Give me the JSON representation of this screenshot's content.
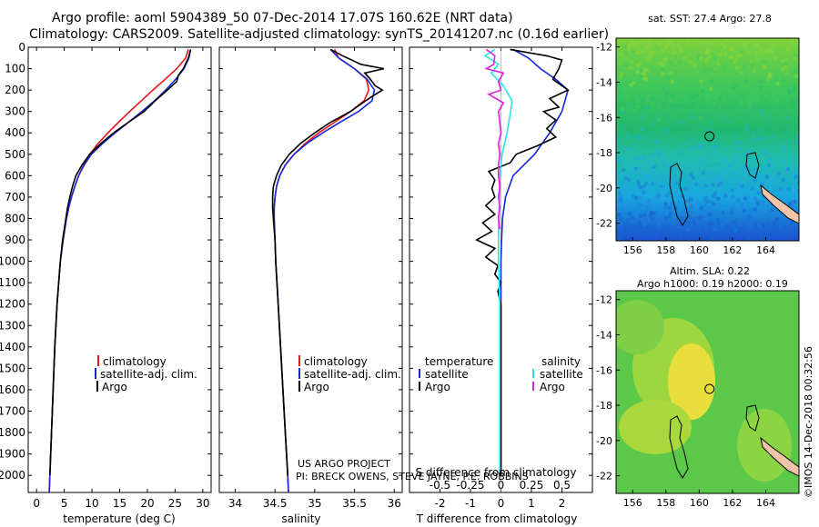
{
  "title_line1": "Argo profile: aoml 5904389_50 07-Dec-2014 17.07S 160.62E (NRT data)",
  "title_line2": "Climatology: CARS2009. Satellite-adjusted climatology: synTS_20141207.nc (0.16d earlier)",
  "colors": {
    "climatology": "#e8141c",
    "satellite": "#1428d8",
    "argo": "#000000",
    "sal_sat": "#28e6e6",
    "sal_argo": "#e020e0",
    "land": "#f0c4a8"
  },
  "chart_data": [
    {
      "type": "line",
      "name": "temperature",
      "xlabel": "temperature (deg C)",
      "xlim": [
        -1.5,
        31.5
      ],
      "xticks": [
        0,
        5,
        10,
        15,
        20,
        25,
        30
      ],
      "xticklabels": [
        "0",
        "5",
        "10",
        "15",
        "20",
        "25",
        "30"
      ],
      "ylim": [
        0,
        2080
      ],
      "yticks": [
        0,
        100,
        200,
        300,
        400,
        500,
        600,
        700,
        800,
        900,
        1000,
        1100,
        1200,
        1300,
        1400,
        1500,
        1600,
        1700,
        1800,
        1900,
        2000
      ],
      "yticklabels": [
        "0",
        "100",
        "200",
        "300",
        "400",
        "500",
        "600",
        "700",
        "800",
        "900",
        "1000",
        "1100",
        "1200",
        "1300",
        "1400",
        "1500",
        "1600",
        "1700",
        "1800",
        "1900",
        "2000"
      ],
      "legend": [
        "climatology",
        "satellite-adj. clim.",
        "Argo"
      ],
      "legend_position": "lower-center",
      "series": [
        {
          "name": "climatology",
          "color": "#e8141c",
          "pressure": [
            10,
            50,
            100,
            150,
            200,
            250,
            300,
            350,
            400,
            450,
            500,
            550,
            600,
            650,
            700,
            750,
            800,
            900,
            1000,
            1100,
            1200,
            1400,
            1600,
            1800,
            2000,
            2080
          ],
          "values": [
            27.4,
            26.9,
            25.3,
            23.2,
            21.0,
            18.9,
            16.8,
            14.8,
            12.9,
            11.1,
            9.6,
            8.5,
            7.6,
            6.9,
            6.3,
            5.8,
            5.4,
            4.8,
            4.3,
            4.0,
            3.7,
            3.3,
            3.0,
            2.7,
            2.4,
            2.3
          ]
        },
        {
          "name": "satellite-adj. clim.",
          "color": "#1428d8",
          "pressure": [
            10,
            50,
            100,
            150,
            200,
            250,
            300,
            350,
            400,
            450,
            500,
            550,
            600,
            650,
            700,
            750,
            800,
            900,
            1000,
            1100,
            1200,
            1400,
            1600,
            1800,
            2000,
            2080
          ],
          "values": [
            27.8,
            27.5,
            26.6,
            25.1,
            23.3,
            21.3,
            19.0,
            16.6,
            14.2,
            11.9,
            9.9,
            8.6,
            7.6,
            6.9,
            6.3,
            5.8,
            5.4,
            4.8,
            4.3,
            4.0,
            3.7,
            3.3,
            3.0,
            2.7,
            2.4,
            2.3
          ]
        },
        {
          "name": "Argo",
          "color": "#000000",
          "pressure": [
            10,
            50,
            100,
            130,
            160,
            200,
            250,
            300,
            350,
            400,
            450,
            500,
            550,
            600,
            650,
            700,
            750,
            800,
            900,
            1000,
            1100,
            1200,
            1400,
            1600,
            1800,
            2000
          ],
          "values": [
            27.8,
            27.4,
            26.5,
            25.6,
            25.3,
            23.6,
            21.4,
            19.4,
            16.6,
            13.9,
            11.6,
            9.6,
            8.2,
            7.1,
            6.5,
            6.0,
            5.6,
            5.3,
            4.7,
            4.3,
            4.0,
            3.7,
            3.3,
            3.0,
            2.7,
            2.4
          ]
        }
      ]
    },
    {
      "type": "line",
      "name": "salinity",
      "xlabel": "salinity",
      "xlim": [
        33.8,
        36.1
      ],
      "xticks": [
        34,
        34.5,
        35,
        35.5,
        36
      ],
      "xticklabels": [
        "34",
        "34.5",
        "35",
        "35.5",
        "36"
      ],
      "ylim": [
        0,
        2080
      ],
      "legend": [
        "climatology",
        "satellite-adj. clim.",
        "Argo"
      ],
      "legend_position": "lower-right",
      "series": [
        {
          "name": "climatology",
          "color": "#e8141c",
          "pressure": [
            10,
            50,
            100,
            150,
            200,
            250,
            300,
            350,
            400,
            450,
            500,
            550,
            600,
            650,
            700,
            750,
            800,
            900,
            1000,
            1200,
            1400,
            1600,
            1800,
            2000,
            2080
          ],
          "values": [
            35.25,
            35.3,
            35.5,
            35.65,
            35.68,
            35.62,
            35.45,
            35.25,
            35.05,
            34.88,
            34.74,
            34.63,
            34.56,
            34.52,
            34.5,
            34.49,
            34.49,
            34.5,
            34.51,
            34.54,
            34.57,
            34.6,
            34.63,
            34.66,
            34.67
          ]
        },
        {
          "name": "satellite-adj. clim.",
          "color": "#1428d8",
          "pressure": [
            10,
            50,
            100,
            150,
            200,
            250,
            300,
            350,
            400,
            450,
            500,
            550,
            600,
            650,
            700,
            750,
            800,
            900,
            1000,
            1200,
            1400,
            1600,
            1800,
            2000,
            2080
          ],
          "values": [
            35.2,
            35.3,
            35.5,
            35.66,
            35.75,
            35.72,
            35.55,
            35.32,
            35.1,
            34.9,
            34.74,
            34.63,
            34.56,
            34.52,
            34.5,
            34.49,
            34.49,
            34.5,
            34.51,
            34.54,
            34.57,
            34.6,
            34.63,
            34.66,
            34.67
          ]
        },
        {
          "name": "Argo",
          "color": "#000000",
          "pressure": [
            10,
            40,
            80,
            100,
            120,
            150,
            180,
            200,
            230,
            260,
            300,
            350,
            400,
            450,
            500,
            550,
            600,
            650,
            700,
            750,
            800,
            900,
            1000,
            1200,
            1400,
            1600,
            1800,
            2000
          ],
          "values": [
            35.2,
            35.35,
            35.58,
            35.87,
            35.63,
            35.7,
            35.76,
            35.85,
            35.72,
            35.6,
            35.45,
            35.2,
            35.0,
            34.82,
            34.68,
            34.58,
            34.52,
            34.48,
            34.47,
            34.47,
            34.48,
            34.5,
            34.51,
            34.54,
            34.57,
            34.6,
            34.63,
            34.66
          ]
        }
      ]
    },
    {
      "type": "line",
      "name": "difference",
      "xlabel": "T difference from climatology",
      "xlabel_top": "S difference from climatology",
      "xlim": [
        -3.0,
        3.0
      ],
      "xticks": [
        -2,
        -1,
        0,
        1,
        2
      ],
      "xticklabels": [
        "-2",
        "-1",
        "0",
        "1",
        "2"
      ],
      "top_xticks": [
        -0.5,
        -0.25,
        0,
        0.25,
        0.5
      ],
      "top_xticklabels": [
        "-0.5",
        "-0.25",
        "0",
        "0.25",
        "0.5"
      ],
      "ylim": [
        0,
        2080
      ],
      "legend_titles": [
        "temperature",
        "salinity"
      ],
      "legend": [
        "satellite",
        "Argo",
        "satellite",
        "Argo"
      ],
      "series": [
        {
          "name": "T satellite",
          "color": "#1428d8",
          "pressure": [
            10,
            50,
            100,
            150,
            200,
            300,
            400,
            500,
            600,
            700,
            800,
            900,
            1000,
            1100,
            1200,
            1400,
            1600,
            1800,
            2000
          ],
          "values": [
            0.4,
            0.9,
            1.3,
            1.8,
            2.2,
            2.0,
            1.6,
            1.1,
            0.4,
            0.15,
            0.05,
            0.02,
            0.0,
            0.0,
            0.0,
            0.0,
            0.0,
            0.0,
            0.0
          ]
        },
        {
          "name": "T Argo",
          "color": "#000000",
          "pressure": [
            10,
            40,
            60,
            100,
            150,
            200,
            240,
            280,
            300,
            340,
            380,
            420,
            460,
            500,
            540,
            580,
            620,
            660,
            700,
            740,
            780,
            820,
            860,
            900,
            940,
            980,
            1020,
            1060,
            1100,
            1140,
            1200,
            1400,
            1600,
            1800,
            2000
          ],
          "values": [
            0.3,
            1.5,
            2.0,
            1.9,
            1.7,
            2.2,
            1.6,
            1.9,
            1.4,
            1.8,
            1.5,
            1.8,
            1.2,
            0.5,
            0.3,
            -0.4,
            -0.2,
            -0.3,
            -0.2,
            -0.5,
            -0.2,
            -0.6,
            -0.3,
            -0.8,
            -0.2,
            -0.5,
            -0.1,
            -0.2,
            0.0,
            -0.1,
            0.0,
            0.0,
            0.0,
            0.0,
            0.0
          ]
        },
        {
          "name": "S satellite",
          "color": "#28e6e6",
          "pressure": [
            10,
            40,
            80,
            120,
            180,
            250,
            300,
            400,
            500,
            600,
            700,
            800,
            900,
            1000,
            1200,
            1400,
            1600,
            1800,
            2000
          ],
          "values": [
            -0.05,
            -0.13,
            -0.02,
            -0.08,
            0.02,
            0.09,
            0.08,
            0.05,
            0.01,
            -0.01,
            -0.01,
            -0.02,
            -0.02,
            -0.02,
            -0.01,
            -0.01,
            -0.01,
            -0.01,
            -0.01
          ]
        },
        {
          "name": "S Argo",
          "color": "#e020e0",
          "pressure": [
            10,
            40,
            80,
            100,
            120,
            160,
            200,
            220,
            260,
            300,
            400,
            450,
            500,
            550,
            600,
            650,
            700,
            750,
            800,
            850
          ],
          "values": [
            -0.12,
            -0.05,
            -0.06,
            -0.12,
            0.02,
            -0.02,
            0.0,
            -0.1,
            0.02,
            -0.02,
            0.0,
            -0.02,
            -0.01,
            -0.02,
            -0.02,
            -0.01,
            -0.02,
            -0.01,
            -0.02,
            -0.01
          ]
        }
      ]
    }
  ],
  "credit": {
    "line1": "US ARGO PROJECT",
    "line2": "PI: BRECK OWENS, STEVE JAYNE, P.E. ROBBINS"
  },
  "map_sst": {
    "title": "sat. SST: 27.4 Argo: 27.8",
    "lon_ticks": [
      156,
      158,
      160,
      162,
      164
    ],
    "lon_labels": [
      "156",
      "158",
      "160",
      "162",
      "164"
    ],
    "lat_ticks": [
      -12,
      -14,
      -16,
      -18,
      -20,
      -22
    ],
    "lat_labels": [
      "-12",
      "-14",
      "-16",
      "-18",
      "-20",
      "-22"
    ],
    "lon_range": [
      155,
      166
    ],
    "lat_range": [
      -11.5,
      -23.0
    ],
    "profile": {
      "lon": 160.62,
      "lat": -17.07
    }
  },
  "map_sla": {
    "title1": "Altim. SLA: 0.22",
    "title2": "Argo h1000: 0.19 h2000: 0.19",
    "lon_ticks": [
      156,
      158,
      160,
      162,
      164
    ],
    "lon_labels": [
      "156",
      "158",
      "160",
      "162",
      "164"
    ],
    "lat_ticks": [
      -12,
      -14,
      -16,
      -18,
      -20,
      -22
    ],
    "lat_labels": [
      "-12",
      "-14",
      "-16",
      "-18",
      "-20",
      "-22"
    ],
    "lon_range": [
      155,
      166
    ],
    "lat_range": [
      -11.5,
      -23.0
    ],
    "profile": {
      "lon": 160.62,
      "lat": -17.07
    }
  },
  "stamp": "©IMOS 14-Dec-2018 00:32:56"
}
